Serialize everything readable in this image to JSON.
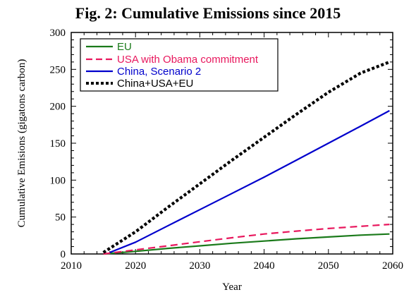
{
  "chart_data": {
    "type": "line",
    "title": "Fig. 2: Cumulative Emissions since 2015",
    "xlabel": "Year",
    "ylabel": "Cumulative Emisions (gigatons carbon)",
    "xlim": [
      2010,
      2060
    ],
    "ylim": [
      0,
      300
    ],
    "xticks": [
      2010,
      2020,
      2030,
      2040,
      2050,
      2060
    ],
    "yticks": [
      0,
      50,
      100,
      150,
      200,
      250,
      300
    ],
    "grid": false,
    "legend_position": "top-left",
    "series": [
      {
        "name": "EU",
        "color": "#1a7a1a",
        "style": "solid",
        "x": [
          2015,
          2020,
          2025,
          2030,
          2035,
          2040,
          2045,
          2050,
          2055,
          2059.5
        ],
        "y": [
          0,
          3.5,
          7.5,
          11,
          14.5,
          17.5,
          20.5,
          23,
          25.5,
          27
        ]
      },
      {
        "name": "USA with Obama commitment",
        "color": "#e8175d",
        "style": "dashed",
        "x": [
          2015,
          2020,
          2025,
          2030,
          2035,
          2040,
          2045,
          2050,
          2055,
          2059.5
        ],
        "y": [
          0,
          5.5,
          11,
          16.5,
          22,
          27,
          31,
          34.5,
          37.5,
          40
        ]
      },
      {
        "name": "China, Scenario 2",
        "color": "#0000cc",
        "style": "solid",
        "x": [
          2016,
          2020,
          2025,
          2030,
          2035,
          2040,
          2045,
          2050,
          2055,
          2059.5
        ],
        "y": [
          2,
          16,
          38,
          60,
          82,
          104,
          127,
          150,
          173,
          194
        ]
      },
      {
        "name": "China+USA+EU",
        "color": "#000000",
        "style": "dotted",
        "x": [
          2015,
          2020,
          2025,
          2030,
          2035,
          2040,
          2045,
          2050,
          2055,
          2059.5
        ],
        "y": [
          2,
          30,
          63,
          95,
          127,
          158,
          189,
          219,
          245,
          260
        ]
      }
    ]
  }
}
